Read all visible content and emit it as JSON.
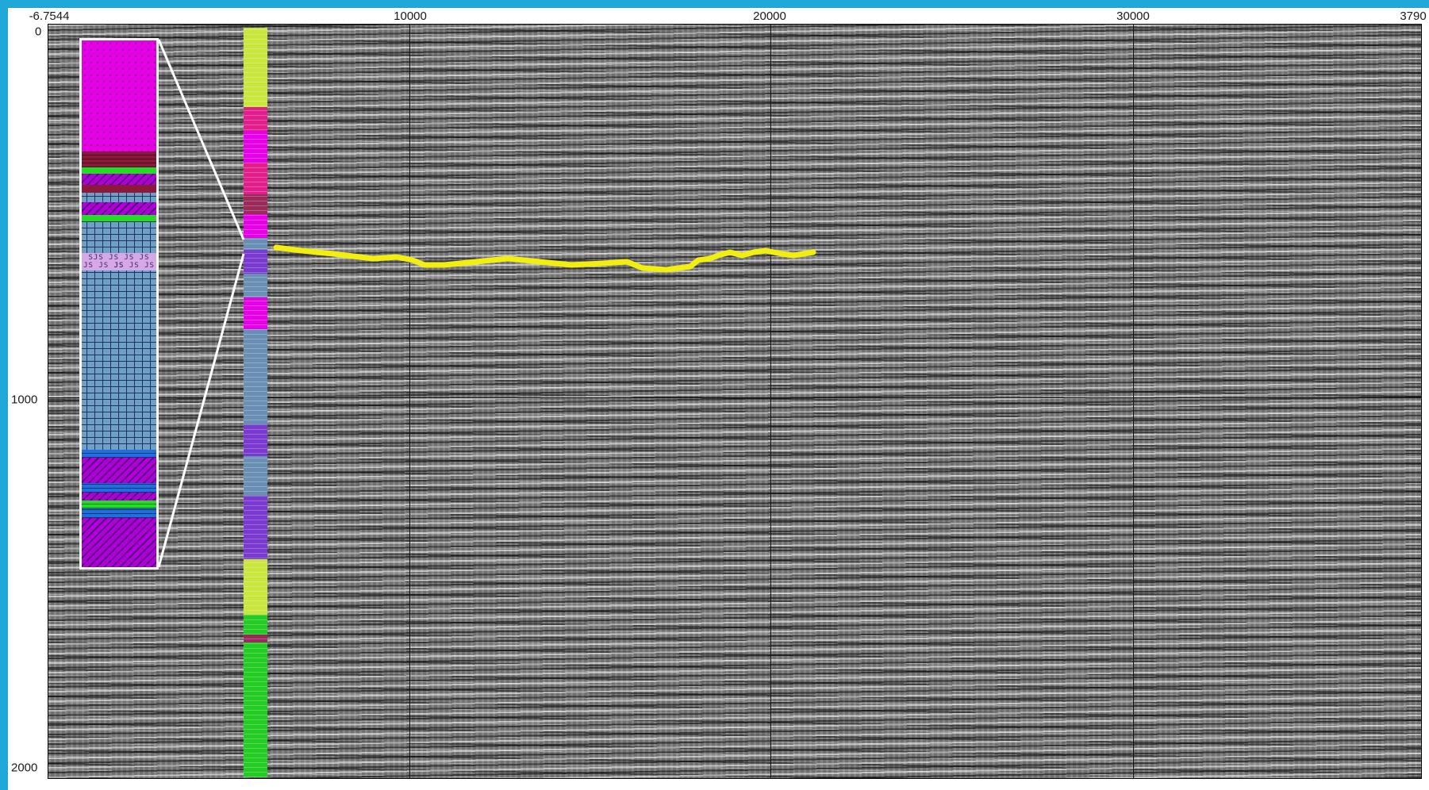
{
  "axes": {
    "x_ticks": [
      "-6.7544",
      "10000",
      "20000",
      "30000",
      "3790"
    ],
    "y_ticks": [
      "0",
      "1000",
      "2000"
    ]
  },
  "strat_column": {
    "sjs_label_1": "SJS JS JS JS JS",
    "sjs_label_2": "JS JS JS JS JS",
    "colors": {
      "magenta": "#e600e6",
      "dark_red": "#8b1a3a",
      "green": "#22dd22",
      "purple": "#b000d8",
      "steel_blue": "#6f9fc4",
      "blue": "#1f6fe0",
      "lilac": "#d6a8e6"
    }
  },
  "well_log": {
    "colors": [
      "#c8e63c",
      "#e01e8c",
      "#e600e6",
      "#9a2a5a",
      "#6a8fb4",
      "#7a3ad0",
      "#22cc22"
    ]
  },
  "horizon": {
    "color": "#f2ee10"
  },
  "grid": {
    "color": "#111111"
  }
}
